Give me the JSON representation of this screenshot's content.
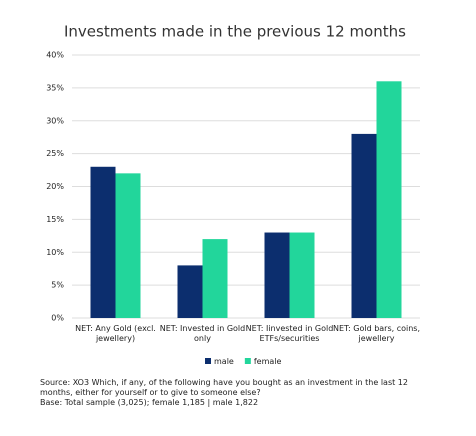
{
  "chart_data": {
    "type": "bar",
    "title": "Investments made in the previous 12 months",
    "categories": [
      "NET: Any Gold (excl. jewellery)",
      "NET: Invested in Gold only",
      "NET: Iinvested in Gold ETFs/securities",
      "NET: Gold bars, coins, jewellery"
    ],
    "series": [
      {
        "name": "male",
        "color": "#0c2e6e",
        "values": [
          23,
          8,
          13,
          28
        ]
      },
      {
        "name": "female",
        "color": "#22d69b",
        "values": [
          22,
          12,
          13,
          36
        ]
      }
    ],
    "ylim": [
      0,
      40
    ],
    "yticks": [
      {
        "value": 0,
        "label": "0%"
      },
      {
        "value": 5,
        "label": "5%"
      },
      {
        "value": 10,
        "label": "10%"
      },
      {
        "value": 15,
        "label": "15%"
      },
      {
        "value": 20,
        "label": "20%"
      },
      {
        "value": 25,
        "label": "25%"
      },
      {
        "value": 30,
        "label": "30%"
      },
      {
        "value": 35,
        "label": "35%"
      },
      {
        "value": 40,
        "label": "40%"
      }
    ],
    "grid": true,
    "legend": "bottom",
    "source": "Source: XO3 Which, if any, of the following have you bought as an investment in the last 12 months, either for yourself or to give to someone else?",
    "base": "Base: Total sample (3,025); female 1,185 | male 1,822"
  }
}
